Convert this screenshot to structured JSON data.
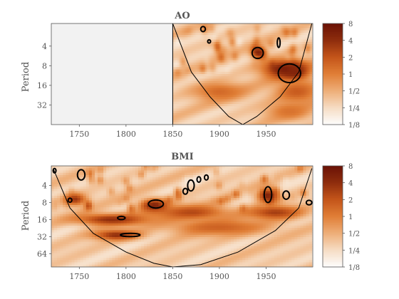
{
  "colors": {
    "background": "#ffffff",
    "mask": "#f2f2f2",
    "axis": "#555555",
    "contour": "#000000",
    "contour_grey": "#8a8a9a",
    "colormap": [
      "#fdfdfd",
      "#f6dcc3",
      "#eeae78",
      "#e07e36",
      "#c4551a",
      "#8e2d0d",
      "#6a1206"
    ]
  },
  "chart_data": [
    {
      "type": "heatmap",
      "subtype": "wavelet-power-spectrum",
      "title": "AO",
      "xlabel": "",
      "ylabel": "Period",
      "xlim": [
        1720,
        2000
      ],
      "x_ticks": [
        1750,
        1800,
        1850,
        1900,
        1950
      ],
      "x_tick_labels": [
        "1750",
        "1800",
        "1850",
        "1900",
        "1950"
      ],
      "y_scale": "log2-reversed",
      "ylim": [
        1.8,
        64
      ],
      "y_ticks": [
        4,
        8,
        16,
        32
      ],
      "y_tick_labels": [
        "4",
        "8",
        "16",
        "32"
      ],
      "data_x_range": [
        1850,
        1999
      ],
      "masked_x_range": [
        1720,
        1850
      ],
      "colorbar": {
        "scale": "log2",
        "range": [
          0.125,
          8
        ],
        "ticks": [
          8,
          4,
          2,
          1,
          0.5,
          0.25,
          0.125
        ],
        "tick_labels": [
          "8",
          "4",
          "2",
          "1",
          "1/2",
          "1/4",
          "1/8"
        ]
      },
      "cone_of_influence": [
        [
          1850,
          1.8
        ],
        [
          1870,
          10
        ],
        [
          1890,
          24
        ],
        [
          1910,
          48
        ],
        [
          1925,
          64
        ],
        [
          1940,
          48
        ],
        [
          1965,
          24
        ],
        [
          1985,
          10
        ],
        [
          1999,
          1.8
        ]
      ],
      "significant_regions": [
        {
          "x": [
            1880,
            1885
          ],
          "y": [
            2.0,
            2.4
          ]
        },
        {
          "x": [
            1888,
            1890
          ],
          "y": [
            3.2,
            3.6
          ]
        },
        {
          "x": [
            1935,
            1947
          ],
          "y": [
            4.2,
            6.2
          ]
        },
        {
          "x": [
            1962,
            1965
          ],
          "y": [
            3.0,
            4.2
          ]
        },
        {
          "x": [
            1963,
            1987
          ],
          "y": [
            7.5,
            14.5
          ]
        }
      ],
      "power_features": [
        {
          "x": 1970,
          "y": 9,
          "power": 6,
          "wx": 25,
          "wy": 0.5
        },
        {
          "x": 1980,
          "y": 10,
          "power": 5,
          "wx": 14,
          "wy": 0.4
        },
        {
          "x": 1942,
          "y": 5,
          "power": 5,
          "wx": 8,
          "wy": 0.3
        },
        {
          "x": 1983,
          "y": 20,
          "power": 1.8,
          "wx": 25,
          "wy": 0.6
        },
        {
          "x": 1975,
          "y": 40,
          "power": 1.2,
          "wx": 25,
          "wy": 0.5
        },
        {
          "x": 1900,
          "y": 20,
          "power": 1.4,
          "wx": 30,
          "wy": 0.5
        }
      ]
    },
    {
      "type": "heatmap",
      "subtype": "wavelet-power-spectrum",
      "title": "BMI",
      "xlabel": "",
      "ylabel": "Period",
      "xlim": [
        1720,
        2000
      ],
      "x_ticks": [
        1750,
        1800,
        1850,
        1900,
        1950
      ],
      "x_tick_labels": [
        "1750",
        "1800",
        "1850",
        "1900",
        "1950"
      ],
      "y_scale": "log2-reversed",
      "ylim": [
        1.8,
        110
      ],
      "y_ticks": [
        4,
        8,
        16,
        32,
        64
      ],
      "y_tick_labels": [
        "4",
        "8",
        "16",
        "32",
        "64"
      ],
      "data_x_range": [
        1720,
        1999
      ],
      "colorbar": {
        "scale": "log2",
        "range": [
          0.125,
          8
        ],
        "ticks": [
          8,
          4,
          2,
          1,
          0.5,
          0.25,
          0.125
        ],
        "tick_labels": [
          "8",
          "4",
          "2",
          "1",
          "1/2",
          "1/4",
          "1/8"
        ]
      },
      "cone_of_influence": [
        [
          1722,
          2
        ],
        [
          1740,
          10
        ],
        [
          1765,
          28
        ],
        [
          1800,
          60
        ],
        [
          1830,
          95
        ],
        [
          1850,
          110
        ],
        [
          1880,
          100
        ],
        [
          1920,
          60
        ],
        [
          1960,
          25
        ],
        [
          1985,
          10
        ],
        [
          1999,
          2
        ]
      ],
      "significant_regions": [
        {
          "x": [
            1722,
            1725
          ],
          "y": [
            2.0,
            2.4
          ]
        },
        {
          "x": [
            1748,
            1756
          ],
          "y": [
            2.1,
            3.2
          ]
        },
        {
          "x": [
            1738,
            1742
          ],
          "y": [
            6.7,
            7.9
          ]
        },
        {
          "x": [
            1791,
            1799
          ],
          "y": [
            14,
            16
          ]
        },
        {
          "x": [
            1794,
            1815
          ],
          "y": [
            28,
            32
          ]
        },
        {
          "x": [
            1824,
            1840
          ],
          "y": [
            7.2,
            10
          ]
        },
        {
          "x": [
            1861,
            1866
          ],
          "y": [
            4.5,
            5.7
          ]
        },
        {
          "x": [
            1866,
            1873
          ],
          "y": [
            3.2,
            5.0
          ]
        },
        {
          "x": [
            1876,
            1880
          ],
          "y": [
            2.8,
            3.5
          ]
        },
        {
          "x": [
            1884,
            1888
          ],
          "y": [
            2.6,
            3.2
          ]
        },
        {
          "x": [
            1948,
            1956
          ],
          "y": [
            4.2,
            8.0
          ]
        },
        {
          "x": [
            1968,
            1975
          ],
          "y": [
            5.0,
            7.0
          ]
        },
        {
          "x": [
            1993,
            1999
          ],
          "y": [
            7.3,
            8.8
          ]
        }
      ],
      "power_features": [
        {
          "x": 1785,
          "y": 16,
          "power": 4,
          "wx": 40,
          "wy": 0.35
        },
        {
          "x": 1790,
          "y": 30,
          "power": 4,
          "wx": 25,
          "wy": 0.3
        },
        {
          "x": 1830,
          "y": 9,
          "power": 5,
          "wx": 15,
          "wy": 0.4
        },
        {
          "x": 1870,
          "y": 12,
          "power": 2.5,
          "wx": 40,
          "wy": 0.45
        },
        {
          "x": 1900,
          "y": 22,
          "power": 1.6,
          "wx": 55,
          "wy": 0.5
        },
        {
          "x": 1952,
          "y": 6,
          "power": 5,
          "wx": 12,
          "wy": 0.45
        },
        {
          "x": 1960,
          "y": 12,
          "power": 3,
          "wx": 30,
          "wy": 0.4
        },
        {
          "x": 1745,
          "y": 7,
          "power": 3.5,
          "wx": 12,
          "wy": 0.35
        }
      ]
    }
  ]
}
